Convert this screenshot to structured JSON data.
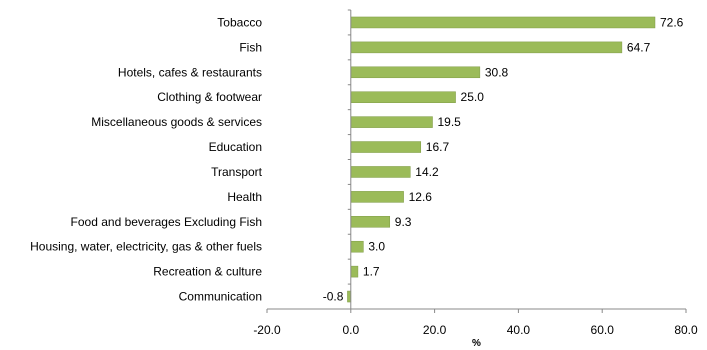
{
  "chart_data": {
    "type": "bar",
    "orientation": "horizontal",
    "title": "",
    "xlabel": "%",
    "ylabel": "",
    "categories": [
      "Tobacco",
      "Fish",
      "Hotels, cafes & restaurants",
      "Clothing & footwear",
      "Miscellaneous goods & services",
      "Education",
      "Transport",
      "Health",
      "Food and beverages Excluding Fish",
      "Housing, water, electricity, gas & other fuels",
      "Recreation & culture",
      "Communication"
    ],
    "values": [
      72.6,
      64.7,
      30.8,
      25.0,
      19.5,
      16.7,
      14.2,
      12.6,
      9.3,
      3.0,
      1.7,
      -0.8
    ],
    "value_labels": [
      "72.6",
      "64.7",
      "30.8",
      "25.0",
      "19.5",
      "16.7",
      "14.2",
      "12.6",
      "9.3",
      "3.0",
      "1.7",
      "-0.8"
    ],
    "xlim": [
      -20,
      80
    ],
    "xticks": [
      -20,
      0,
      20,
      40,
      60,
      80
    ],
    "xtick_labels": [
      "-20.0",
      "0.0",
      "20.0",
      "40.0",
      "60.0",
      "80.0"
    ],
    "grid": false,
    "legend": "none",
    "bar_color": "#9BBB59",
    "bar_edge_color": "#7E9A44"
  }
}
